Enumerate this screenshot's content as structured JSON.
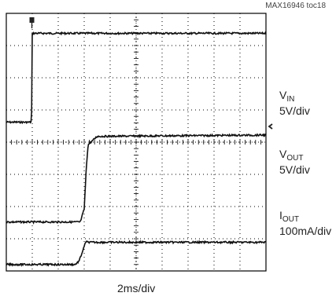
{
  "tag": "MAX16946 toc18",
  "timebase": "2ms/div",
  "colors": {
    "frame": "#000000",
    "grid": "#000000",
    "trace": "#111111"
  },
  "icons": {
    "trigger": "trigger-marker-icon",
    "level": "trigger-level-icon"
  },
  "chart_data": {
    "type": "line",
    "title": "",
    "xlabel": "2ms/div",
    "ylabel": "",
    "grid": true,
    "divisions": {
      "x": 10,
      "y": 8
    },
    "xlim": [
      0,
      20
    ],
    "x_unit": "ms",
    "series": [
      {
        "name": "VIN",
        "label_main": "V",
        "label_sub": "IN",
        "scale": "5V/div",
        "offset_div": 4.62,
        "div_per_unit": 0.2,
        "x": [
          0,
          1.95,
          1.97,
          20
        ],
        "y": [
          0,
          0,
          13.8,
          13.8
        ]
      },
      {
        "name": "VOUT",
        "label_main": "V",
        "label_sub": "OUT",
        "scale": "5V/div",
        "offset_div": 1.52,
        "div_per_unit": 0.2,
        "x": [
          0,
          5.7,
          6.0,
          6.15,
          6.3,
          7.0,
          20
        ],
        "y": [
          0,
          0,
          2.0,
          8.0,
          12.0,
          13.3,
          13.5
        ]
      },
      {
        "name": "IOUT",
        "label_main": "I",
        "label_sub": "OUT",
        "scale": "100mA/div",
        "offset_div": 0.2,
        "div_per_unit": 0.01,
        "x": [
          0,
          5.3,
          5.6,
          6.0,
          6.1,
          6.5,
          20
        ],
        "y": [
          0,
          0,
          10,
          55,
          70,
          69,
          69
        ]
      }
    ]
  }
}
